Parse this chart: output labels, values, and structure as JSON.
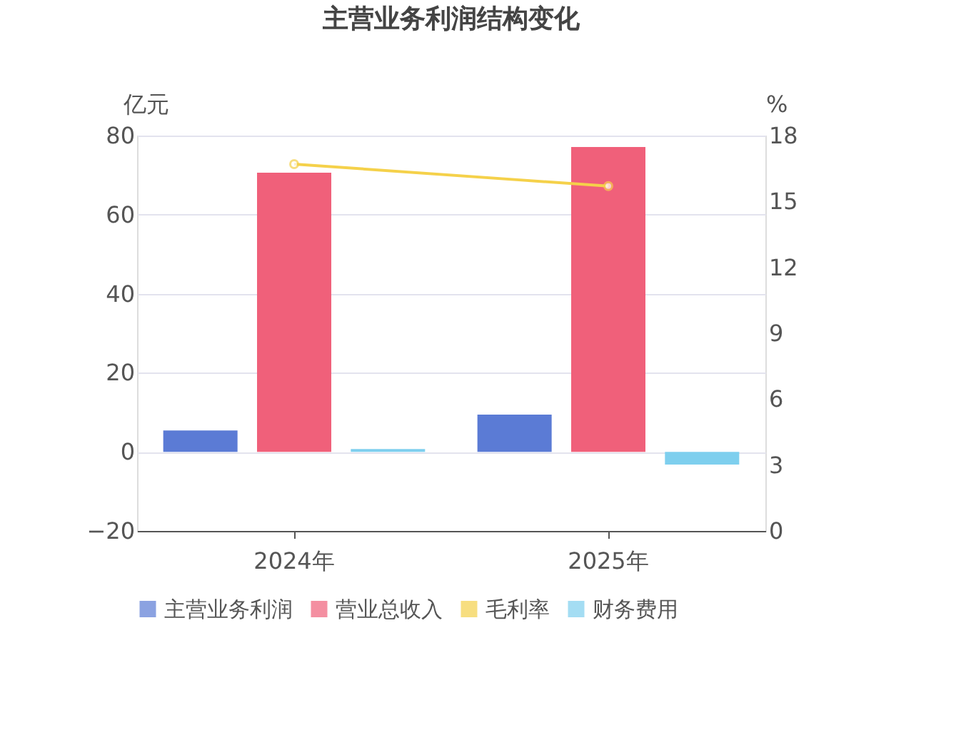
{
  "chart_data": {
    "type": "bar",
    "title": "主营业务利润结构变化",
    "ylabel": "亿元",
    "y2label": "%",
    "categories": [
      "2024年",
      "2025年"
    ],
    "series": [
      {
        "name": "主营业务利润",
        "type": "bar",
        "color": "#5b7bd5",
        "values": [
          5.4,
          9.4
        ]
      },
      {
        "name": "营业总收入",
        "type": "bar",
        "color": "#f0607a",
        "values": [
          70.6,
          77.1
        ]
      },
      {
        "name": "毛利率",
        "type": "line",
        "axis": "y2",
        "marker": "circle",
        "color": "#f5d14a",
        "values": [
          16.7,
          15.7
        ]
      },
      {
        "name": "财务费用",
        "type": "bar",
        "color": "#7ecfee",
        "values": [
          0.7,
          -3.2
        ]
      }
    ],
    "ylim": [
      -20,
      80
    ],
    "yticks": [
      -20,
      0,
      20,
      40,
      60,
      80
    ],
    "y2lim": [
      0,
      18
    ],
    "y2ticks": [
      0,
      3,
      6,
      9,
      12,
      15,
      18
    ],
    "grid": "y",
    "legend": "bottom"
  }
}
